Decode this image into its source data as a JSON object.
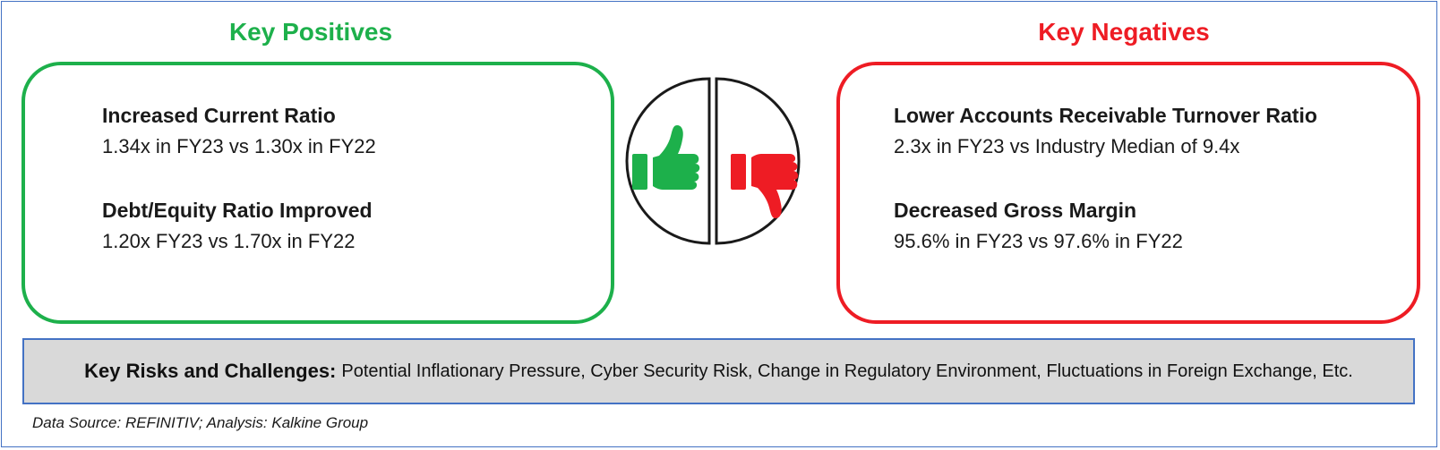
{
  "positives": {
    "title": "Key Positives",
    "color": "#1db04b",
    "items": [
      {
        "title": "Increased Current Ratio",
        "detail": "1.34x in FY23 vs 1.30x in FY22"
      },
      {
        "title": "Debt/Equity Ratio Improved",
        "detail": "1.20x FY23 vs 1.70x in FY22"
      }
    ]
  },
  "negatives": {
    "title": "Key Negatives",
    "color": "#ee1c24",
    "items": [
      {
        "title": "Lower Accounts Receivable Turnover Ratio",
        "detail": "2.3x in FY23 vs Industry Median of 9.4x"
      },
      {
        "title": "Decreased Gross Margin",
        "detail": "95.6% in FY23 vs 97.6% in FY22"
      }
    ]
  },
  "icons": {
    "thumbs_up": "thumbs-up-icon",
    "thumbs_down": "thumbs-down-icon"
  },
  "risks": {
    "label": "Key Risks and Challenges:",
    "text": "Potential Inflationary Pressure, Cyber Security Risk, Change in Regulatory Environment, Fluctuations in Foreign Exchange, Etc."
  },
  "source": "Data Source: REFINITIV; Analysis: Kalkine Group",
  "colors": {
    "frame_border": "#4472c4",
    "risks_background": "#d9d9d9"
  }
}
